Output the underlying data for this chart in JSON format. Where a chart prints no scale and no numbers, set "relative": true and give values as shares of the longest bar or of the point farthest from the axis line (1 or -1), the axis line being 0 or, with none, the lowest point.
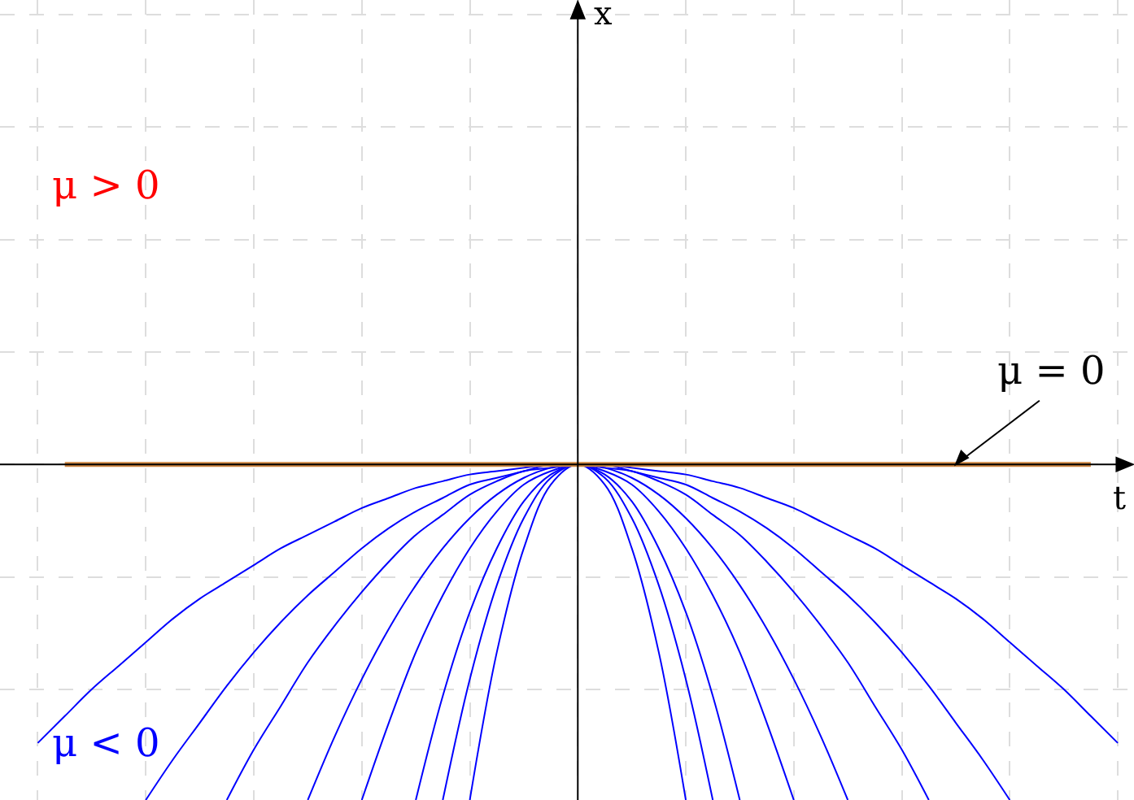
{
  "chart_data": {
    "type": "line",
    "relative": true,
    "grid": true,
    "categories": [
      null,
      null,
      null,
      null,
      null,
      null,
      null,
      null,
      null,
      null,
      null,
      null,
      null,
      null,
      null,
      null,
      null,
      null,
      null,
      null,
      null,
      null,
      null,
      null,
      null,
      null,
      null,
      null,
      null,
      null,
      null,
      null,
      null,
      null,
      null,
      null,
      null,
      null,
      null,
      null,
      null
    ],
    "annotations": [
      "μ > 0",
      "μ < 0",
      "μ = 0",
      "x",
      "t"
    ],
    "series": [
      {
        "color": "#0000ff",
        "values": [
          -0.83,
          -0.75,
          -0.67,
          -0.6,
          -0.53,
          -0.46,
          -0.4,
          -0.35,
          -0.3,
          -0.25,
          -0.21,
          -0.17,
          -0.13,
          -0.1,
          -0.07,
          -0.05,
          -0.03,
          -0.02,
          -0.01,
          0,
          0,
          0,
          -0.01,
          -0.02,
          -0.03,
          -0.05,
          -0.07,
          -0.1,
          -0.13,
          -0.17,
          -0.21,
          -0.25,
          -0.3,
          -0.35,
          -0.4,
          -0.46,
          -0.53,
          -0.6,
          -0.67,
          -0.75,
          -0.83
        ]
      },
      {
        "color": "#0000ff",
        "values": [
          null,
          null,
          null,
          null,
          -1.0,
          -0.88,
          -0.77,
          -0.66,
          -0.56,
          -0.47,
          -0.39,
          -0.32,
          -0.25,
          -0.19,
          -0.14,
          -0.1,
          -0.06,
          -0.04,
          -0.02,
          0,
          0,
          0,
          -0.02,
          -0.04,
          -0.06,
          -0.1,
          -0.14,
          -0.19,
          -0.25,
          -0.32,
          -0.39,
          -0.47,
          -0.56,
          -0.66,
          -0.77,
          -0.88,
          -1.0,
          null,
          null,
          null,
          null
        ]
      },
      {
        "color": "#0000ff",
        "values": [
          null,
          null,
          null,
          null,
          null,
          null,
          null,
          -1.0,
          -0.85,
          -0.72,
          -0.59,
          -0.48,
          -0.38,
          -0.29,
          -0.21,
          -0.15,
          -0.09,
          -0.05,
          -0.02,
          -0.01,
          0,
          -0.01,
          -0.02,
          -0.05,
          -0.09,
          -0.15,
          -0.21,
          -0.29,
          -0.38,
          -0.48,
          -0.59,
          -0.72,
          -0.85,
          -1.0,
          null,
          null,
          null,
          null,
          null,
          null,
          null
        ]
      },
      {
        "color": "#0000ff",
        "values": [
          null,
          null,
          null,
          null,
          null,
          null,
          null,
          null,
          null,
          null,
          -1.0,
          -0.81,
          -0.64,
          -0.49,
          -0.36,
          -0.25,
          -0.16,
          -0.09,
          -0.04,
          -0.01,
          0,
          -0.01,
          -0.04,
          -0.09,
          -0.16,
          -0.25,
          -0.36,
          -0.49,
          -0.64,
          -0.81,
          -1.0,
          null,
          null,
          null,
          null,
          null,
          null,
          null,
          null,
          null,
          null
        ]
      },
      {
        "color": "#0000ff",
        "values": [
          null,
          null,
          null,
          null,
          null,
          null,
          null,
          null,
          null,
          null,
          null,
          null,
          -1.0,
          -0.77,
          -0.56,
          -0.39,
          -0.25,
          -0.14,
          -0.06,
          -0.02,
          0,
          -0.02,
          -0.06,
          -0.14,
          -0.25,
          -0.39,
          -0.56,
          -0.77,
          -1.0,
          null,
          null,
          null,
          null,
          null,
          null,
          null,
          null,
          null,
          null,
          null,
          null
        ]
      },
      {
        "color": "#0000ff",
        "values": [
          null,
          null,
          null,
          null,
          null,
          null,
          null,
          null,
          null,
          null,
          null,
          null,
          null,
          null,
          -1.0,
          -0.69,
          -0.44,
          -0.25,
          -0.11,
          -0.03,
          0,
          -0.03,
          -0.11,
          -0.25,
          -0.44,
          -0.69,
          -1.0,
          null,
          null,
          null,
          null,
          null,
          null,
          null,
          null,
          null,
          null,
          null,
          null,
          null,
          null
        ]
      },
      {
        "color": "#0000ff",
        "values": [
          null,
          null,
          null,
          null,
          null,
          null,
          null,
          null,
          null,
          null,
          null,
          null,
          null,
          null,
          null,
          -1.0,
          -0.64,
          -0.36,
          -0.16,
          -0.04,
          0,
          -0.04,
          -0.16,
          -0.36,
          -0.64,
          -1.0,
          null,
          null,
          null,
          null,
          null,
          null,
          null,
          null,
          null,
          null,
          null,
          null,
          null,
          null,
          null
        ]
      },
      {
        "color": "#0000ff",
        "values": [
          null,
          null,
          null,
          null,
          null,
          null,
          null,
          null,
          null,
          null,
          null,
          null,
          null,
          null,
          null,
          null,
          -1.0,
          -0.56,
          -0.25,
          -0.06,
          0,
          -0.06,
          -0.25,
          -0.56,
          -1.0,
          null,
          null,
          null,
          null,
          null,
          null,
          null,
          null,
          null,
          null,
          null,
          null,
          null,
          null,
          null,
          null
        ]
      },
      {
        "color": "#cd853f",
        "values": [
          null,
          0,
          0,
          0,
          0,
          0,
          0,
          0,
          0,
          0,
          0,
          0,
          0,
          0,
          0,
          0,
          0,
          0,
          0,
          0,
          0,
          0,
          0,
          0,
          0,
          0,
          0,
          0,
          0,
          0,
          0,
          0,
          0,
          0,
          0,
          0,
          0,
          0,
          0,
          0,
          null
        ]
      }
    ]
  }
}
